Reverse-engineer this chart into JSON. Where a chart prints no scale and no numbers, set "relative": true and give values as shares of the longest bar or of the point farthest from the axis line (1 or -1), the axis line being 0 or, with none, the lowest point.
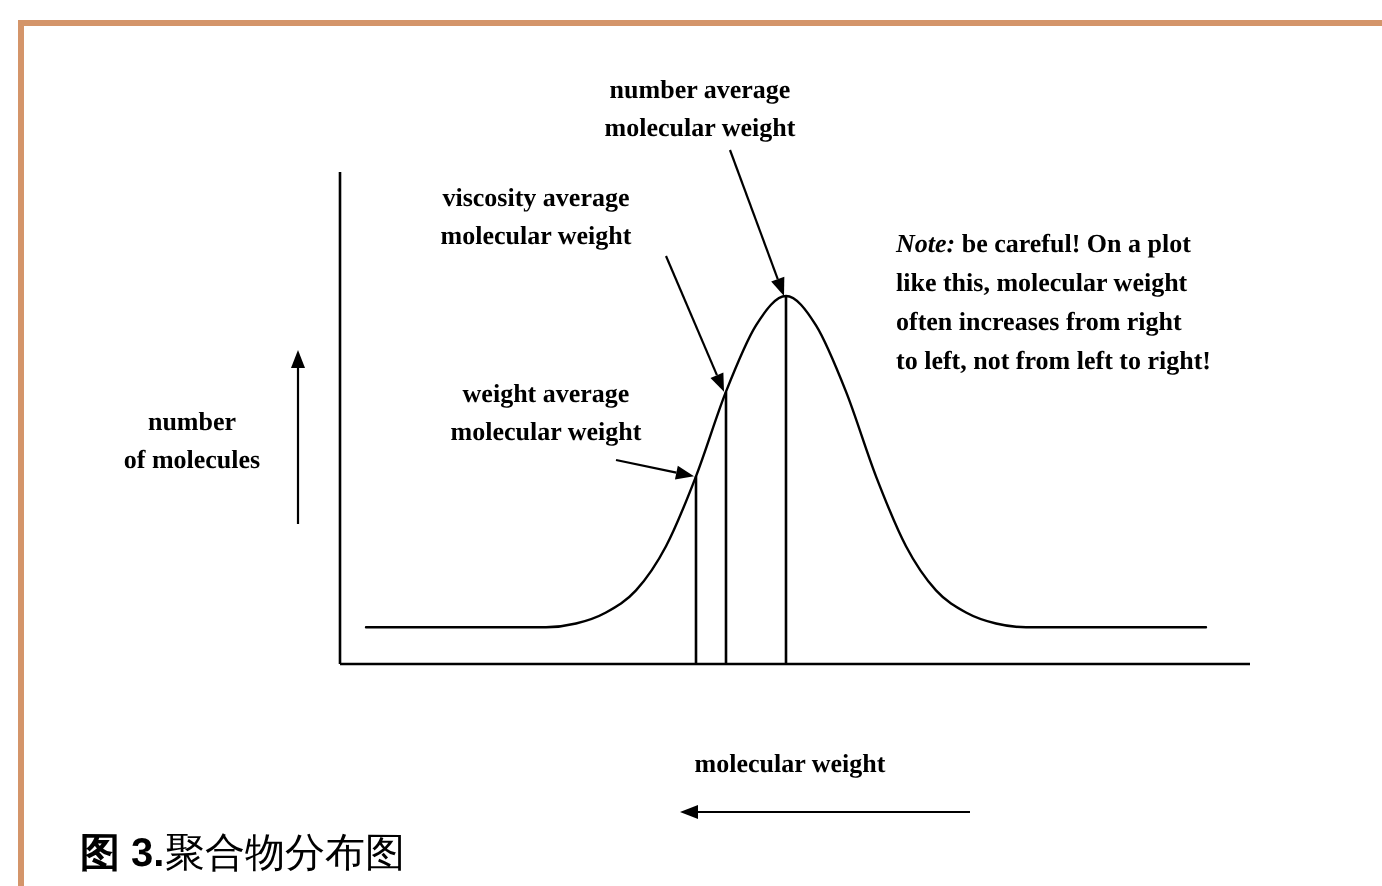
{
  "chart_data": {
    "type": "line",
    "relative": true,
    "categories": [
      null,
      null,
      null,
      null,
      null,
      null,
      null,
      null,
      null,
      null,
      null,
      null,
      null,
      null,
      null,
      null,
      null,
      null,
      null,
      null,
      null,
      null,
      null,
      null,
      null,
      null,
      null,
      null,
      null
    ],
    "series": [
      {
        "color": "#000000",
        "values": [
          0.1,
          0.1,
          0.1,
          0.1,
          0.1,
          0.1,
          0.1,
          0.11,
          0.14,
          0.2,
          0.32,
          0.51,
          0.74,
          0.92,
          1,
          0.92,
          0.74,
          0.51,
          0.32,
          0.2,
          0.14,
          0.11,
          0.1,
          0.1,
          0.1,
          0.1,
          0.1,
          0.1,
          0.1
        ]
      }
    ],
    "xlabel": "molecular weight",
    "ylabel": "number\nof molecules",
    "annotations": [
      "weight average\nmolecular weight",
      "viscosity average\nmolecular weight",
      "number average\nmolecular weight",
      "Note: be careful!  On a plot\nlike this, molecular weight\noften increases from right\nto left, not from left to right!",
      "图 3.聚合物分布图"
    ]
  }
}
